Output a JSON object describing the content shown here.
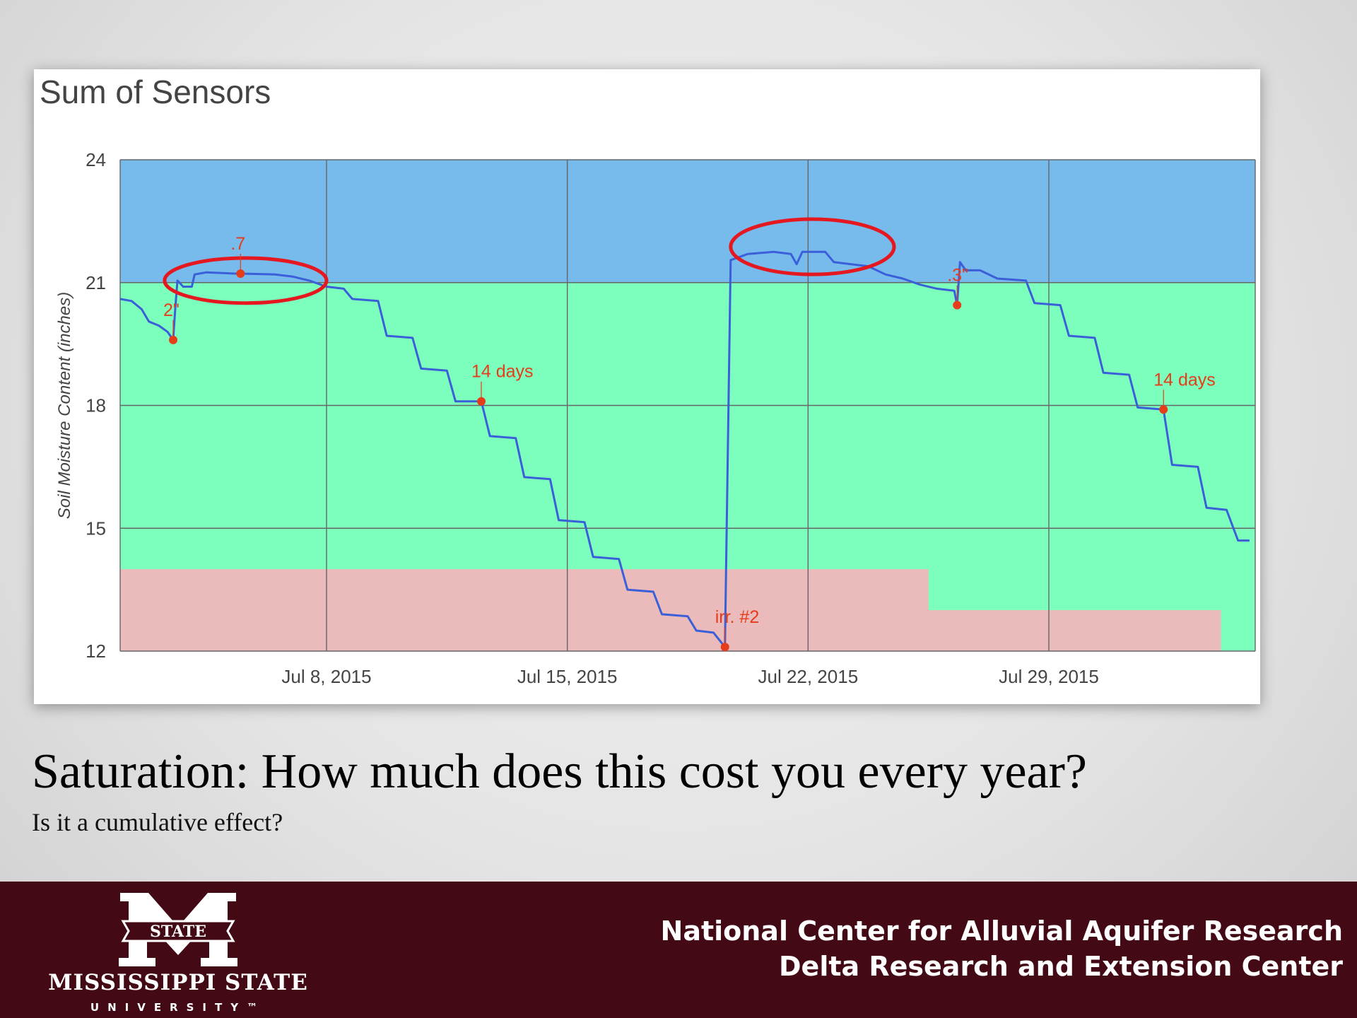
{
  "chart_data": {
    "type": "line",
    "title": "Sum of Sensors",
    "ylabel": "Soil Moisture Content (inches)",
    "xlabel": "",
    "ylim": [
      12,
      24
    ],
    "yticks": [
      24,
      21,
      18,
      15,
      12
    ],
    "xlim": [
      "2015-07-02",
      "2015-08-03"
    ],
    "xticks": [
      {
        "date": "2015-07-08",
        "label": "Jul 8, 2015"
      },
      {
        "date": "2015-07-15",
        "label": "Jul 15, 2015"
      },
      {
        "date": "2015-07-22",
        "label": "Jul 22, 2015"
      },
      {
        "date": "2015-07-29",
        "label": "Jul 29, 2015"
      }
    ],
    "grid": true,
    "legend": "none",
    "zones": [
      {
        "name": "saturation",
        "color": "#77baec",
        "y_from": 21,
        "y_to": 24
      },
      {
        "name": "plant-available",
        "color": "#7cffbc",
        "y_from": 12,
        "y_to": 21
      },
      {
        "name": "stress",
        "color": "#ebbaba",
        "steps": [
          {
            "x_from": "2015-07-02",
            "x_to": "2015-07-25T12:00",
            "y_top": 14
          },
          {
            "x_from": "2015-07-25T12:00",
            "x_to": "2015-08-03",
            "y_top": 13
          }
        ]
      }
    ],
    "series": [
      {
        "color": "#3a5fd8",
        "points": [
          [
            "2015-07-02T00:00",
            20.6
          ],
          [
            "2015-07-02T08:00",
            20.55
          ],
          [
            "2015-07-02T15:00",
            20.35
          ],
          [
            "2015-07-02T20:00",
            20.05
          ],
          [
            "2015-07-03T03:00",
            19.95
          ],
          [
            "2015-07-03T09:00",
            19.8
          ],
          [
            "2015-07-03T13:00",
            19.6
          ],
          [
            "2015-07-03T14:30",
            20.4
          ],
          [
            "2015-07-03T16:00",
            21.05
          ],
          [
            "2015-07-03T20:00",
            20.9
          ],
          [
            "2015-07-04T02:00",
            20.9
          ],
          [
            "2015-07-04T04:00",
            21.2
          ],
          [
            "2015-07-04T12:00",
            21.25
          ],
          [
            "2015-07-05T08:00",
            21.22
          ],
          [
            "2015-07-05T12:00",
            21.22
          ],
          [
            "2015-07-06T12:00",
            21.2
          ],
          [
            "2015-07-07T00:00",
            21.15
          ],
          [
            "2015-07-07T12:00",
            21.05
          ],
          [
            "2015-07-08T00:00",
            20.9
          ],
          [
            "2015-07-08T12:00",
            20.85
          ],
          [
            "2015-07-08T18:00",
            20.6
          ],
          [
            "2015-07-09T12:00",
            20.55
          ],
          [
            "2015-07-09T18:00",
            19.7
          ],
          [
            "2015-07-10T12:00",
            19.65
          ],
          [
            "2015-07-10T18:00",
            18.9
          ],
          [
            "2015-07-11T12:00",
            18.85
          ],
          [
            "2015-07-11T18:00",
            18.1
          ],
          [
            "2015-07-12T12:00",
            18.1
          ],
          [
            "2015-07-12T18:00",
            17.25
          ],
          [
            "2015-07-13T12:00",
            17.2
          ],
          [
            "2015-07-13T18:00",
            16.25
          ],
          [
            "2015-07-14T12:00",
            16.2
          ],
          [
            "2015-07-14T18:00",
            15.2
          ],
          [
            "2015-07-15T12:00",
            15.15
          ],
          [
            "2015-07-15T18:00",
            14.3
          ],
          [
            "2015-07-16T12:00",
            14.25
          ],
          [
            "2015-07-16T18:00",
            13.5
          ],
          [
            "2015-07-17T12:00",
            13.45
          ],
          [
            "2015-07-17T18:00",
            12.9
          ],
          [
            "2015-07-18T12:00",
            12.85
          ],
          [
            "2015-07-18T18:00",
            12.5
          ],
          [
            "2015-07-19T06:00",
            12.45
          ],
          [
            "2015-07-19T14:00",
            12.1
          ],
          [
            "2015-07-19T18:00",
            21.55
          ],
          [
            "2015-07-20T06:00",
            21.7
          ],
          [
            "2015-07-21T00:00",
            21.75
          ],
          [
            "2015-07-21T12:00",
            21.7
          ],
          [
            "2015-07-21T16:00",
            21.45
          ],
          [
            "2015-07-21T20:00",
            21.75
          ],
          [
            "2015-07-22T12:00",
            21.75
          ],
          [
            "2015-07-22T18:00",
            21.5
          ],
          [
            "2015-07-23T06:00",
            21.45
          ],
          [
            "2015-07-23T18:00",
            21.4
          ],
          [
            "2015-07-24T06:00",
            21.2
          ],
          [
            "2015-07-24T18:00",
            21.1
          ],
          [
            "2015-07-25T06:00",
            20.95
          ],
          [
            "2015-07-25T18:00",
            20.85
          ],
          [
            "2015-07-26T06:00",
            20.8
          ],
          [
            "2015-07-26T08:00",
            20.45
          ],
          [
            "2015-07-26T10:00",
            21.5
          ],
          [
            "2015-07-26T14:00",
            21.3
          ],
          [
            "2015-07-27T00:00",
            21.3
          ],
          [
            "2015-07-27T12:00",
            21.1
          ],
          [
            "2015-07-28T08:00",
            21.05
          ],
          [
            "2015-07-28T14:00",
            20.5
          ],
          [
            "2015-07-29T08:00",
            20.45
          ],
          [
            "2015-07-29T14:00",
            19.7
          ],
          [
            "2015-07-30T08:00",
            19.65
          ],
          [
            "2015-07-30T14:00",
            18.8
          ],
          [
            "2015-07-31T08:00",
            18.75
          ],
          [
            "2015-07-31T14:00",
            17.95
          ],
          [
            "2015-08-01T08:00",
            17.9
          ],
          [
            "2015-08-01T14:00",
            16.55
          ],
          [
            "2015-08-02T08:00",
            16.5
          ],
          [
            "2015-08-02T14:00",
            15.5
          ],
          [
            "2015-08-03T04:00",
            15.45
          ],
          [
            "2015-08-03T12:00",
            14.7
          ],
          [
            "2015-08-03T20:00",
            14.7
          ]
        ]
      }
    ],
    "annotations": [
      {
        "label": "2\"",
        "date": "2015-07-03T13:00",
        "value": 19.6,
        "color": "#e53c1a"
      },
      {
        "label": ".7",
        "date": "2015-07-05T12:00",
        "value": 21.22,
        "color": "#e53c1a"
      },
      {
        "label": "14 days",
        "date": "2015-07-12T12:00",
        "value": 18.1,
        "color": "#e53c1a"
      },
      {
        "label": "irr. #2",
        "date": "2015-07-19T14:00",
        "value": 12.1,
        "color": "#e53c1a"
      },
      {
        "label": ".3\"",
        "date": "2015-07-26T08:00",
        "value": 20.45,
        "color": "#e53c1a"
      },
      {
        "label": "14 days",
        "date": "2015-08-01T08:00",
        "value": 17.9,
        "color": "#e53c1a"
      }
    ],
    "highlights": [
      {
        "shape": "ellipse",
        "color": "#e5171f",
        "x_from": "2015-07-03T07:00",
        "x_to": "2015-07-08T00:00",
        "y_from": 20.5,
        "y_to": 21.6
      },
      {
        "shape": "ellipse",
        "color": "#e5171f",
        "x_from": "2015-07-19T18:00",
        "x_to": "2015-07-24T12:00",
        "y_from": 21.2,
        "y_to": 22.55
      }
    ]
  },
  "slide": {
    "title": "Saturation: How much does this cost you every year?",
    "subtitle": "Is it a cumulative effect?"
  },
  "footer": {
    "background": "#430915",
    "logo_shield_text": "STATE",
    "logo_wordmark": "MISSISSIPPI STATE",
    "logo_subtitle": "UNIVERSITY™",
    "org_line_1": "National Center for Alluvial Aquifer Research",
    "org_line_2": "Delta Research and Extension Center"
  }
}
